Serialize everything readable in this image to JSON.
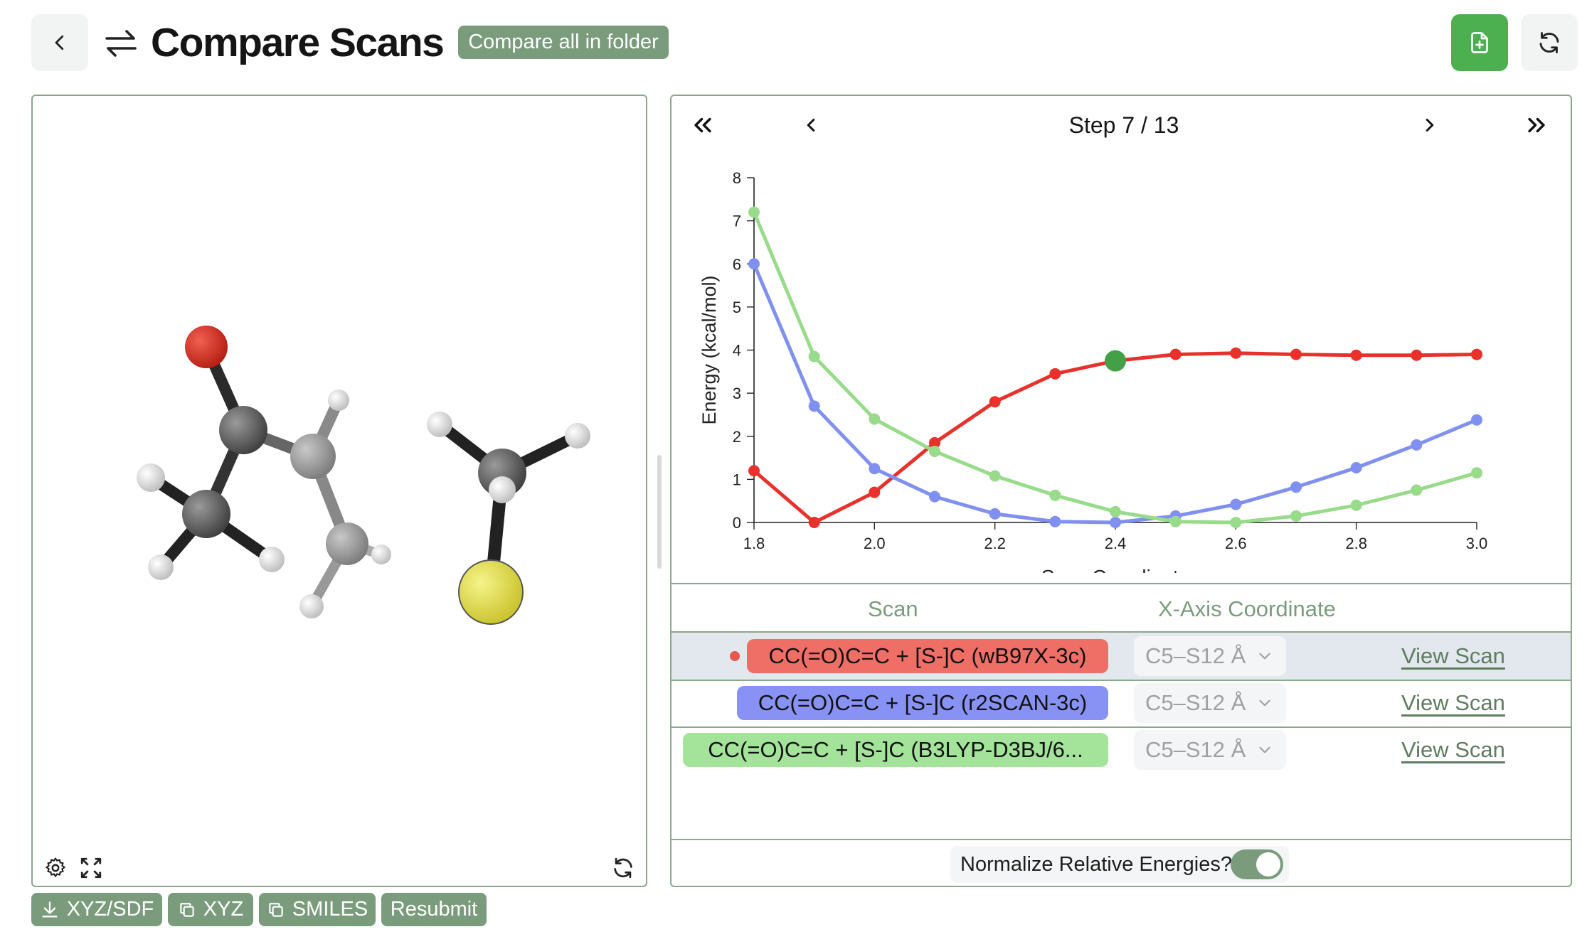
{
  "header": {
    "title": "Compare Scans",
    "compare_all_label": "Compare all in folder"
  },
  "viewer": {
    "actions": [
      {
        "label": "XYZ/SDF",
        "icon": "download-icon"
      },
      {
        "label": "XYZ",
        "icon": "copy-icon"
      },
      {
        "label": "SMILES",
        "icon": "copy-icon"
      },
      {
        "label": "Resubmit",
        "icon": ""
      }
    ]
  },
  "stepper": {
    "label": "Step 7 / 13",
    "current": 7,
    "total": 13
  },
  "chart_data": {
    "type": "line",
    "title": "",
    "xlabel": "Scan Coordinate",
    "ylabel": "Energy (kcal/mol)",
    "xlim": [
      1.8,
      3.0
    ],
    "ylim": [
      0,
      8
    ],
    "xticks": [
      "1.8",
      "2.0",
      "2.2",
      "2.4",
      "2.6",
      "2.8",
      "3.0"
    ],
    "yticks": [
      "0",
      "1",
      "2",
      "3",
      "4",
      "5",
      "6",
      "7",
      "8"
    ],
    "x": [
      1.8,
      1.9,
      2.0,
      2.1,
      2.2,
      2.3,
      2.4,
      2.5,
      2.6,
      2.7,
      2.8,
      2.9,
      3.0
    ],
    "highlight_index": 6,
    "highlight_color": "#43a047",
    "grid": false,
    "series": [
      {
        "color": "#e8312a",
        "values": [
          1.2,
          0.0,
          0.7,
          1.85,
          2.8,
          3.45,
          3.75,
          3.9,
          3.93,
          3.9,
          3.88,
          3.88,
          3.9
        ]
      },
      {
        "color": "#8090f0",
        "values": [
          6.0,
          2.7,
          1.25,
          0.6,
          0.2,
          0.02,
          0.0,
          0.15,
          0.42,
          0.82,
          1.27,
          1.8,
          2.38
        ]
      },
      {
        "color": "#98db8a",
        "values": [
          7.2,
          3.85,
          2.4,
          1.65,
          1.08,
          0.63,
          0.25,
          0.02,
          0.0,
          0.15,
          0.4,
          0.75,
          1.15
        ]
      }
    ]
  },
  "table": {
    "headers": {
      "scan": "Scan",
      "coord": "X-Axis Coordinate"
    },
    "rows": [
      {
        "name": "CC(=O)C=C + [S-]C (wB97X-3c)",
        "color": "#ef6f66",
        "coord": "C5–S12 Å",
        "link": "View Scan",
        "selected": true
      },
      {
        "name": "CC(=O)C=C + [S-]C (r2SCAN-3c)",
        "color": "#8892f4",
        "coord": "C5–S12 Å",
        "link": "View Scan",
        "selected": false
      },
      {
        "name": "CC(=O)C=C + [S-]C (B3LYP-D3BJ/6...",
        "color": "#a3e39a",
        "coord": "C5–S12 Å",
        "link": "View Scan",
        "selected": false
      }
    ]
  },
  "normalize": {
    "label": "Normalize Relative Energies?",
    "enabled": true
  },
  "colors": {
    "accent": "#7a9c7c",
    "primary": "#4caf50",
    "border": "#8aa88c"
  }
}
